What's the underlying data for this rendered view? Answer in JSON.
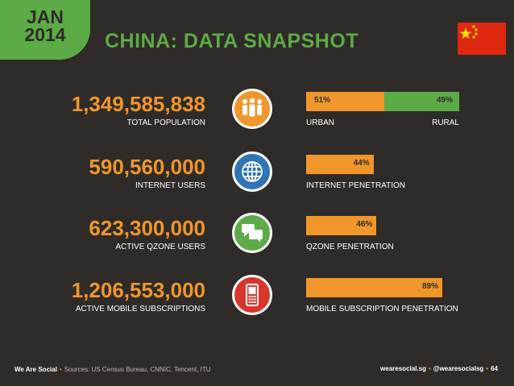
{
  "header": {
    "month": "JAN",
    "year": "2014",
    "title": "CHINA: DATA SNAPSHOT",
    "flag_icon": "china-flag-icon",
    "flag_color": "#de2910",
    "flag_star_color": "#ffde00"
  },
  "stats": [
    {
      "value": "1,349,585,838",
      "label": "TOTAL POPULATION",
      "icon": "people-icon",
      "icon_color": "#f0962a",
      "bar": {
        "segments": [
          {
            "pct": 51,
            "text": "51%",
            "color": "#f0962a"
          },
          {
            "pct": 49,
            "text": "49%",
            "color": "#5cab46"
          }
        ],
        "label_left": "URBAN",
        "label_right": "RURAL"
      }
    },
    {
      "value": "590,560,000",
      "label": "INTERNET USERS",
      "icon": "globe-icon",
      "icon_color": "#2f74b5",
      "bar": {
        "segments": [
          {
            "pct": 44,
            "text": "44%",
            "color": "#f0962a"
          }
        ],
        "label_left": "INTERNET PENETRATION"
      }
    },
    {
      "value": "623,300,000",
      "label": "ACTIVE QZONE USERS",
      "icon": "chat-bubbles-icon",
      "icon_color": "#5cab46",
      "bar": {
        "segments": [
          {
            "pct": 46,
            "text": "46%",
            "color": "#f0962a"
          }
        ],
        "label_left": "QZONE PENETRATION"
      }
    },
    {
      "value": "1,206,553,000",
      "label": "ACTIVE MOBILE SUBSCRIPTIONS",
      "icon": "mobile-phone-icon",
      "icon_color": "#d9362b",
      "bar": {
        "segments": [
          {
            "pct": 89,
            "text": "89%",
            "color": "#f0962a"
          }
        ],
        "label_left": "MOBILE SUBSCRIPTION PENETRATION"
      }
    }
  ],
  "footer": {
    "brand": "We Are Social",
    "sources": "Sources: US Census Bureau, CNNIC, Tencent, ITU",
    "site": "wearesocial.sg",
    "handle": "@wearesocialsg",
    "page": "64"
  }
}
